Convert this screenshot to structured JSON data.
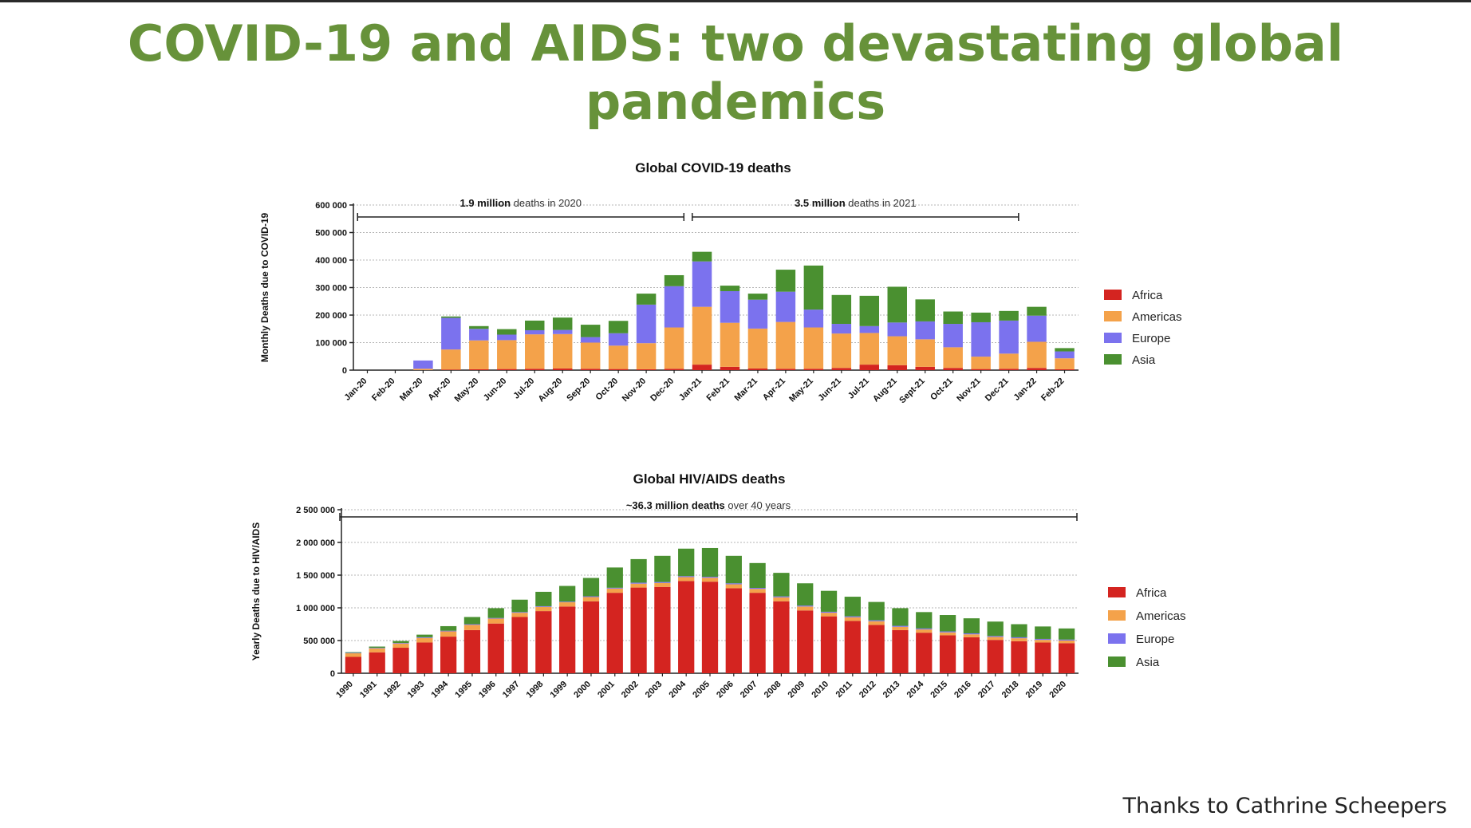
{
  "slide": {
    "title": "COVID-19 and AIDS: two devastating global pandemics",
    "credit": "Thanks to Cathrine Scheepers"
  },
  "colors": {
    "Africa": "#d42420",
    "Americas": "#f4a24a",
    "Europe": "#7b72ee",
    "Asia": "#4a9030"
  },
  "chart_data": [
    {
      "type": "bar",
      "stacked": true,
      "title": "Global COVID-19 deaths",
      "xlabel": "",
      "ylabel": "Monthly Deaths due to COVID-19",
      "ylim": [
        0,
        600000
      ],
      "yticks": [
        0,
        100000,
        200000,
        300000,
        400000,
        500000,
        600000
      ],
      "ytick_labels": [
        "0",
        "100 000",
        "200 000",
        "300 000",
        "400 000",
        "500 000",
        "600 000"
      ],
      "grid": true,
      "legend_position": "right",
      "categories": [
        "Jan-20",
        "Feb-20",
        "Mar-20",
        "Apr-20",
        "May-20",
        "Jun-20",
        "Jul-20",
        "Aug-20",
        "Sep-20",
        "Oct-20",
        "Nov-20",
        "Dec-20",
        "Jan-21",
        "Feb-21",
        "Mar-21",
        "Apr-21",
        "May-21",
        "Jun-21",
        "Jul-21",
        "Aug-21",
        "Sept-21",
        "Oct-21",
        "Nov-21",
        "Dec-21",
        "Jan-22",
        "Feb-22"
      ],
      "series": [
        {
          "name": "Africa",
          "values": [
            0,
            0,
            0,
            2000,
            3000,
            4000,
            5000,
            6000,
            5000,
            4000,
            3000,
            5000,
            20000,
            12000,
            6000,
            5000,
            5000,
            8000,
            20000,
            18000,
            12000,
            8000,
            4000,
            5000,
            8000,
            3000
          ]
        },
        {
          "name": "Americas",
          "values": [
            0,
            0,
            5000,
            73000,
            105000,
            105000,
            125000,
            125000,
            95000,
            85000,
            95000,
            150000,
            210000,
            160000,
            145000,
            170000,
            150000,
            125000,
            115000,
            105000,
            100000,
            75000,
            45000,
            55000,
            95000,
            40000
          ]
        },
        {
          "name": "Europe",
          "values": [
            0,
            0,
            30000,
            115000,
            42000,
            20000,
            15000,
            15000,
            20000,
            45000,
            140000,
            150000,
            165000,
            115000,
            105000,
            110000,
            65000,
            35000,
            25000,
            50000,
            65000,
            85000,
            125000,
            120000,
            95000,
            25000
          ]
        },
        {
          "name": "Asia",
          "values": [
            0,
            0,
            0,
            5000,
            10000,
            20000,
            35000,
            45000,
            45000,
            45000,
            40000,
            40000,
            35000,
            20000,
            22000,
            80000,
            160000,
            105000,
            110000,
            130000,
            80000,
            45000,
            35000,
            35000,
            32000,
            12000
          ]
        }
      ],
      "annotations": [
        {
          "text_bold": "1.9 million",
          "text": "deaths in 2020",
          "from": "Jan-20",
          "to": "Dec-20"
        },
        {
          "text_bold": "3.5 million",
          "text": "deaths in 2021",
          "from": "Jan-21",
          "to": "Dec-21"
        }
      ]
    },
    {
      "type": "bar",
      "stacked": true,
      "title": "Global HIV/AIDS deaths",
      "xlabel": "",
      "ylabel": "Yearly Deaths due to HIV/AIDS",
      "ylim": [
        0,
        2500000
      ],
      "yticks": [
        0,
        500000,
        1000000,
        1500000,
        2000000,
        2500000
      ],
      "ytick_labels": [
        "0",
        "500 000",
        "1 000 000",
        "1 500 000",
        "2 000 000",
        "2 500 000"
      ],
      "grid": true,
      "legend_position": "right",
      "categories": [
        "1990",
        "1991",
        "1992",
        "1993",
        "1994",
        "1995",
        "1996",
        "1997",
        "1998",
        "1999",
        "2000",
        "2001",
        "2002",
        "2003",
        "2004",
        "2005",
        "2006",
        "2007",
        "2008",
        "2009",
        "2010",
        "2011",
        "2012",
        "2013",
        "2014",
        "2015",
        "2016",
        "2017",
        "2018",
        "2019",
        "2020"
      ],
      "series": [
        {
          "name": "Africa",
          "values": [
            250000,
            320000,
            390000,
            470000,
            560000,
            660000,
            760000,
            860000,
            950000,
            1020000,
            1100000,
            1230000,
            1310000,
            1320000,
            1410000,
            1400000,
            1300000,
            1230000,
            1100000,
            960000,
            870000,
            800000,
            740000,
            660000,
            620000,
            580000,
            550000,
            510000,
            490000,
            470000,
            460000
          ]
        },
        {
          "name": "Americas",
          "values": [
            55000,
            60000,
            65000,
            70000,
            80000,
            80000,
            75000,
            65000,
            65000,
            65000,
            65000,
            65000,
            60000,
            60000,
            60000,
            60000,
            60000,
            60000,
            60000,
            60000,
            55000,
            55000,
            55000,
            50000,
            50000,
            45000,
            45000,
            45000,
            45000,
            40000,
            40000
          ]
        },
        {
          "name": "Europe",
          "values": [
            8000,
            8000,
            8000,
            10000,
            10000,
            10000,
            10000,
            10000,
            10000,
            10000,
            12000,
            12000,
            15000,
            15000,
            15000,
            15000,
            15000,
            15000,
            15000,
            15000,
            15000,
            15000,
            15000,
            15000,
            15000,
            15000,
            15000,
            15000,
            15000,
            15000,
            15000
          ]
        },
        {
          "name": "Asia",
          "values": [
            10000,
            20000,
            30000,
            40000,
            70000,
            110000,
            150000,
            190000,
            220000,
            240000,
            280000,
            310000,
            360000,
            400000,
            420000,
            440000,
            420000,
            380000,
            360000,
            340000,
            320000,
            300000,
            280000,
            270000,
            250000,
            250000,
            230000,
            220000,
            200000,
            190000,
            170000
          ]
        }
      ],
      "annotations": [
        {
          "text_bold": "~36.3 million deaths",
          "text": "over 40 years",
          "from": "1990",
          "to": "2020"
        }
      ]
    }
  ]
}
